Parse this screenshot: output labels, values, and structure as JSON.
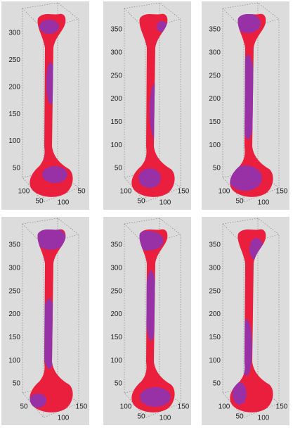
{
  "panels": [
    {
      "z_ticks": [
        "50",
        "100",
        "150",
        "200",
        "250",
        "300"
      ],
      "base_left": [
        "100",
        "50"
      ],
      "base_right": [
        "100",
        "50"
      ]
    },
    {
      "z_ticks": [
        "50",
        "100",
        "150",
        "200",
        "250",
        "300",
        "350"
      ],
      "base_left": [
        "100",
        "50"
      ],
      "base_right": [
        "100",
        "150"
      ]
    },
    {
      "z_ticks": [
        "50",
        "100",
        "150",
        "200",
        "250",
        "300",
        "350"
      ],
      "base_left": [
        "100",
        "50"
      ],
      "base_right": [
        "100",
        "150"
      ]
    },
    {
      "z_ticks": [
        "50",
        "100",
        "150",
        "200",
        "250",
        "300",
        "350"
      ],
      "base_left": [
        "50"
      ],
      "base_right": [
        "100",
        "150"
      ]
    },
    {
      "z_ticks": [
        "50",
        "100",
        "150",
        "200",
        "250",
        "300",
        "350"
      ],
      "base_left": [
        "100",
        "50"
      ],
      "base_right": [
        "100",
        "150"
      ]
    },
    {
      "z_ticks": [
        "50",
        "100",
        "150",
        "200",
        "250",
        "300",
        "350"
      ],
      "base_left": [
        "100",
        "50"
      ],
      "base_right": [
        "100",
        "150"
      ]
    }
  ]
}
